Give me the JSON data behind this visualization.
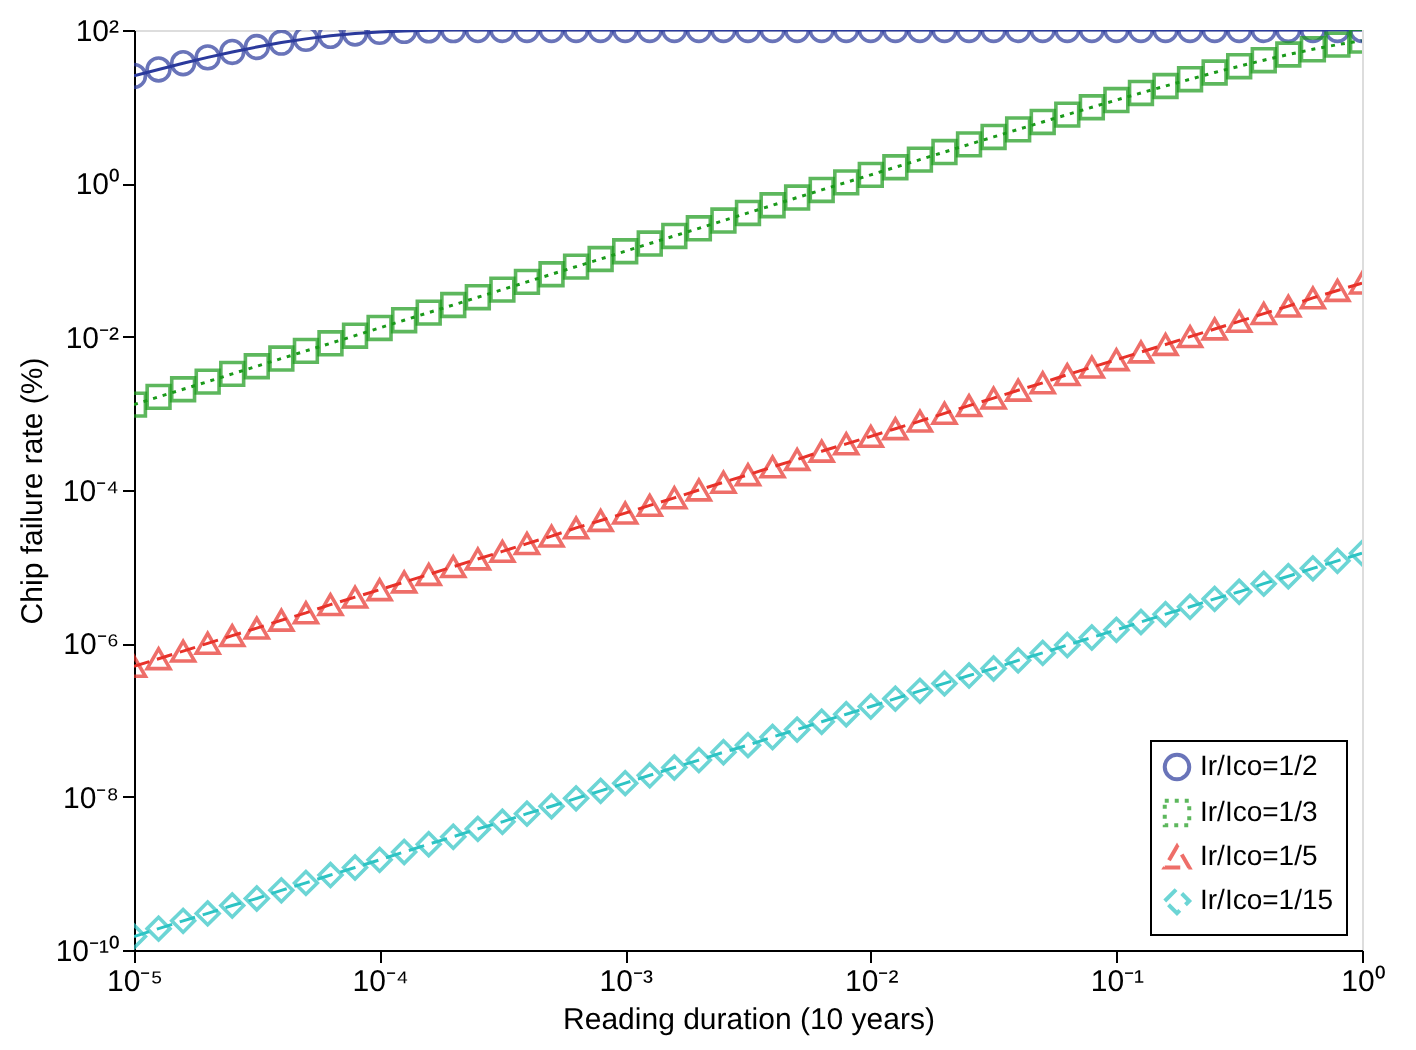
{
  "chart_data": {
    "type": "line",
    "xlabel": "Reading duration (10 years)",
    "ylabel": "Chip failure rate (%)",
    "x": [
      1e-05,
      1.259e-05,
      1.585e-05,
      1.995e-05,
      2.512e-05,
      3.162e-05,
      3.981e-05,
      5.012e-05,
      6.31e-05,
      7.943e-05,
      0.0001,
      0.0001259,
      0.0001585,
      0.0001995,
      0.0002512,
      0.0003162,
      0.0003981,
      0.0005012,
      0.000631,
      0.0007943,
      0.001,
      0.001259,
      0.001585,
      0.001995,
      0.002512,
      0.003162,
      0.003981,
      0.005012,
      0.00631,
      0.007943,
      0.01,
      0.01259,
      0.01585,
      0.01995,
      0.02512,
      0.03162,
      0.03981,
      0.05012,
      0.0631,
      0.07943,
      0.1,
      0.1259,
      0.1585,
      0.1995,
      0.2512,
      0.3162,
      0.3981,
      0.5012,
      0.631,
      0.7943,
      1
    ],
    "series": [
      {
        "name": "Ir/Ico=1/2",
        "color": "#2b3a9c",
        "marker": "circle",
        "line_style": "solid",
        "values": [
          25.2,
          30.6,
          36.9,
          43.9,
          51.7,
          60.0,
          68.5,
          76.6,
          84.0,
          90.0,
          94.5,
          97.4,
          99.0,
          99.7,
          99.9,
          100,
          100,
          100,
          100,
          100,
          100,
          100,
          100,
          100,
          100,
          100,
          100,
          100,
          100,
          100,
          100,
          100,
          100,
          100,
          100,
          100,
          100,
          100,
          100,
          100,
          100,
          100,
          100,
          100,
          100,
          100,
          100,
          100,
          100,
          100,
          100
        ]
      },
      {
        "name": "Ir/Ico=1/3",
        "color": "#1a9a1a",
        "marker": "square",
        "line_style": "dotted",
        "values": [
          0.0013,
          0.00164,
          0.00206,
          0.00259,
          0.00327,
          0.00411,
          0.00518,
          0.00652,
          0.0082,
          0.0103,
          0.013,
          0.0164,
          0.0206,
          0.0259,
          0.0327,
          0.0411,
          0.0518,
          0.0652,
          0.082,
          0.103,
          0.13,
          0.164,
          0.206,
          0.259,
          0.327,
          0.411,
          0.518,
          0.652,
          0.82,
          1.03,
          1.29,
          1.62,
          2.04,
          2.56,
          3.22,
          4.03,
          5.05,
          6.32,
          7.88,
          9.82,
          12.2,
          15.1,
          18.6,
          22.8,
          27.9,
          33.7,
          40.4,
          47.9,
          56.0,
          64.4,
          72.7
        ]
      },
      {
        "name": "Ir/Ico=1/5",
        "color": "#e8322a",
        "marker": "triangle",
        "line_style": "dashed",
        "values": [
          5e-07,
          6.3e-07,
          7.9e-07,
          1e-06,
          1.26e-06,
          1.58e-06,
          2e-06,
          2.5e-06,
          3.2e-06,
          4e-06,
          5e-06,
          6.3e-06,
          7.9e-06,
          1e-05,
          1.26e-05,
          1.58e-05,
          2e-05,
          2.5e-05,
          3.2e-05,
          4e-05,
          5e-05,
          6.3e-05,
          7.9e-05,
          0.0001,
          0.000126,
          0.000158,
          0.0002,
          0.00025,
          0.00032,
          0.0004,
          0.0005,
          0.00063,
          0.00079,
          0.001,
          0.00126,
          0.00158,
          0.002,
          0.0025,
          0.0032,
          0.004,
          0.005,
          0.0063,
          0.0079,
          0.01,
          0.0126,
          0.0158,
          0.02,
          0.025,
          0.032,
          0.04,
          0.05
        ]
      },
      {
        "name": "Ir/Ico=1/15",
        "color": "#2ec4c4",
        "marker": "diamond",
        "line_style": "dashed",
        "values": [
          1.5e-10,
          1.9e-10,
          2.4e-10,
          3e-10,
          3.8e-10,
          4.7e-10,
          6e-10,
          7.5e-10,
          9.5e-10,
          1.19e-09,
          1.5e-09,
          1.9e-09,
          2.4e-09,
          3e-09,
          3.8e-09,
          4.7e-09,
          6e-09,
          7.5e-09,
          9.5e-09,
          1.19e-08,
          1.5e-08,
          1.9e-08,
          2.4e-08,
          3e-08,
          3.8e-08,
          4.7e-08,
          6e-08,
          7.5e-08,
          9.5e-08,
          1.19e-07,
          1.5e-07,
          1.9e-07,
          2.4e-07,
          3e-07,
          3.8e-07,
          4.7e-07,
          6e-07,
          7.5e-07,
          9.5e-07,
          1.19e-06,
          1.5e-06,
          1.9e-06,
          2.4e-06,
          3e-06,
          3.8e-06,
          4.7e-06,
          6e-06,
          7.5e-06,
          9.5e-06,
          1.19e-05,
          1.5e-05
        ]
      }
    ],
    "log": "xy",
    "xlim": [
      1e-05,
      1
    ],
    "xticks": [
      {
        "value": 1e-05,
        "label": "10⁻⁵"
      },
      {
        "value": 0.0001,
        "label": "10⁻⁴"
      },
      {
        "value": 0.001,
        "label": "10⁻³"
      },
      {
        "value": 0.01,
        "label": "10⁻²"
      },
      {
        "value": 0.1,
        "label": "10⁻¹"
      },
      {
        "value": 1,
        "label": "10⁰"
      }
    ],
    "ylim": [
      1e-10,
      100
    ],
    "yticks": [
      {
        "value": 1e-10,
        "label": "10⁻¹⁰"
      },
      {
        "value": 1e-08,
        "label": "10⁻⁸"
      },
      {
        "value": 1e-06,
        "label": "10⁻⁶"
      },
      {
        "value": 0.0001,
        "label": "10⁻⁴"
      },
      {
        "value": 0.01,
        "label": "10⁻²"
      },
      {
        "value": 1,
        "label": "10⁰"
      },
      {
        "value": 100,
        "label": "10²"
      }
    ],
    "grid": false,
    "legend": "bottom right"
  }
}
